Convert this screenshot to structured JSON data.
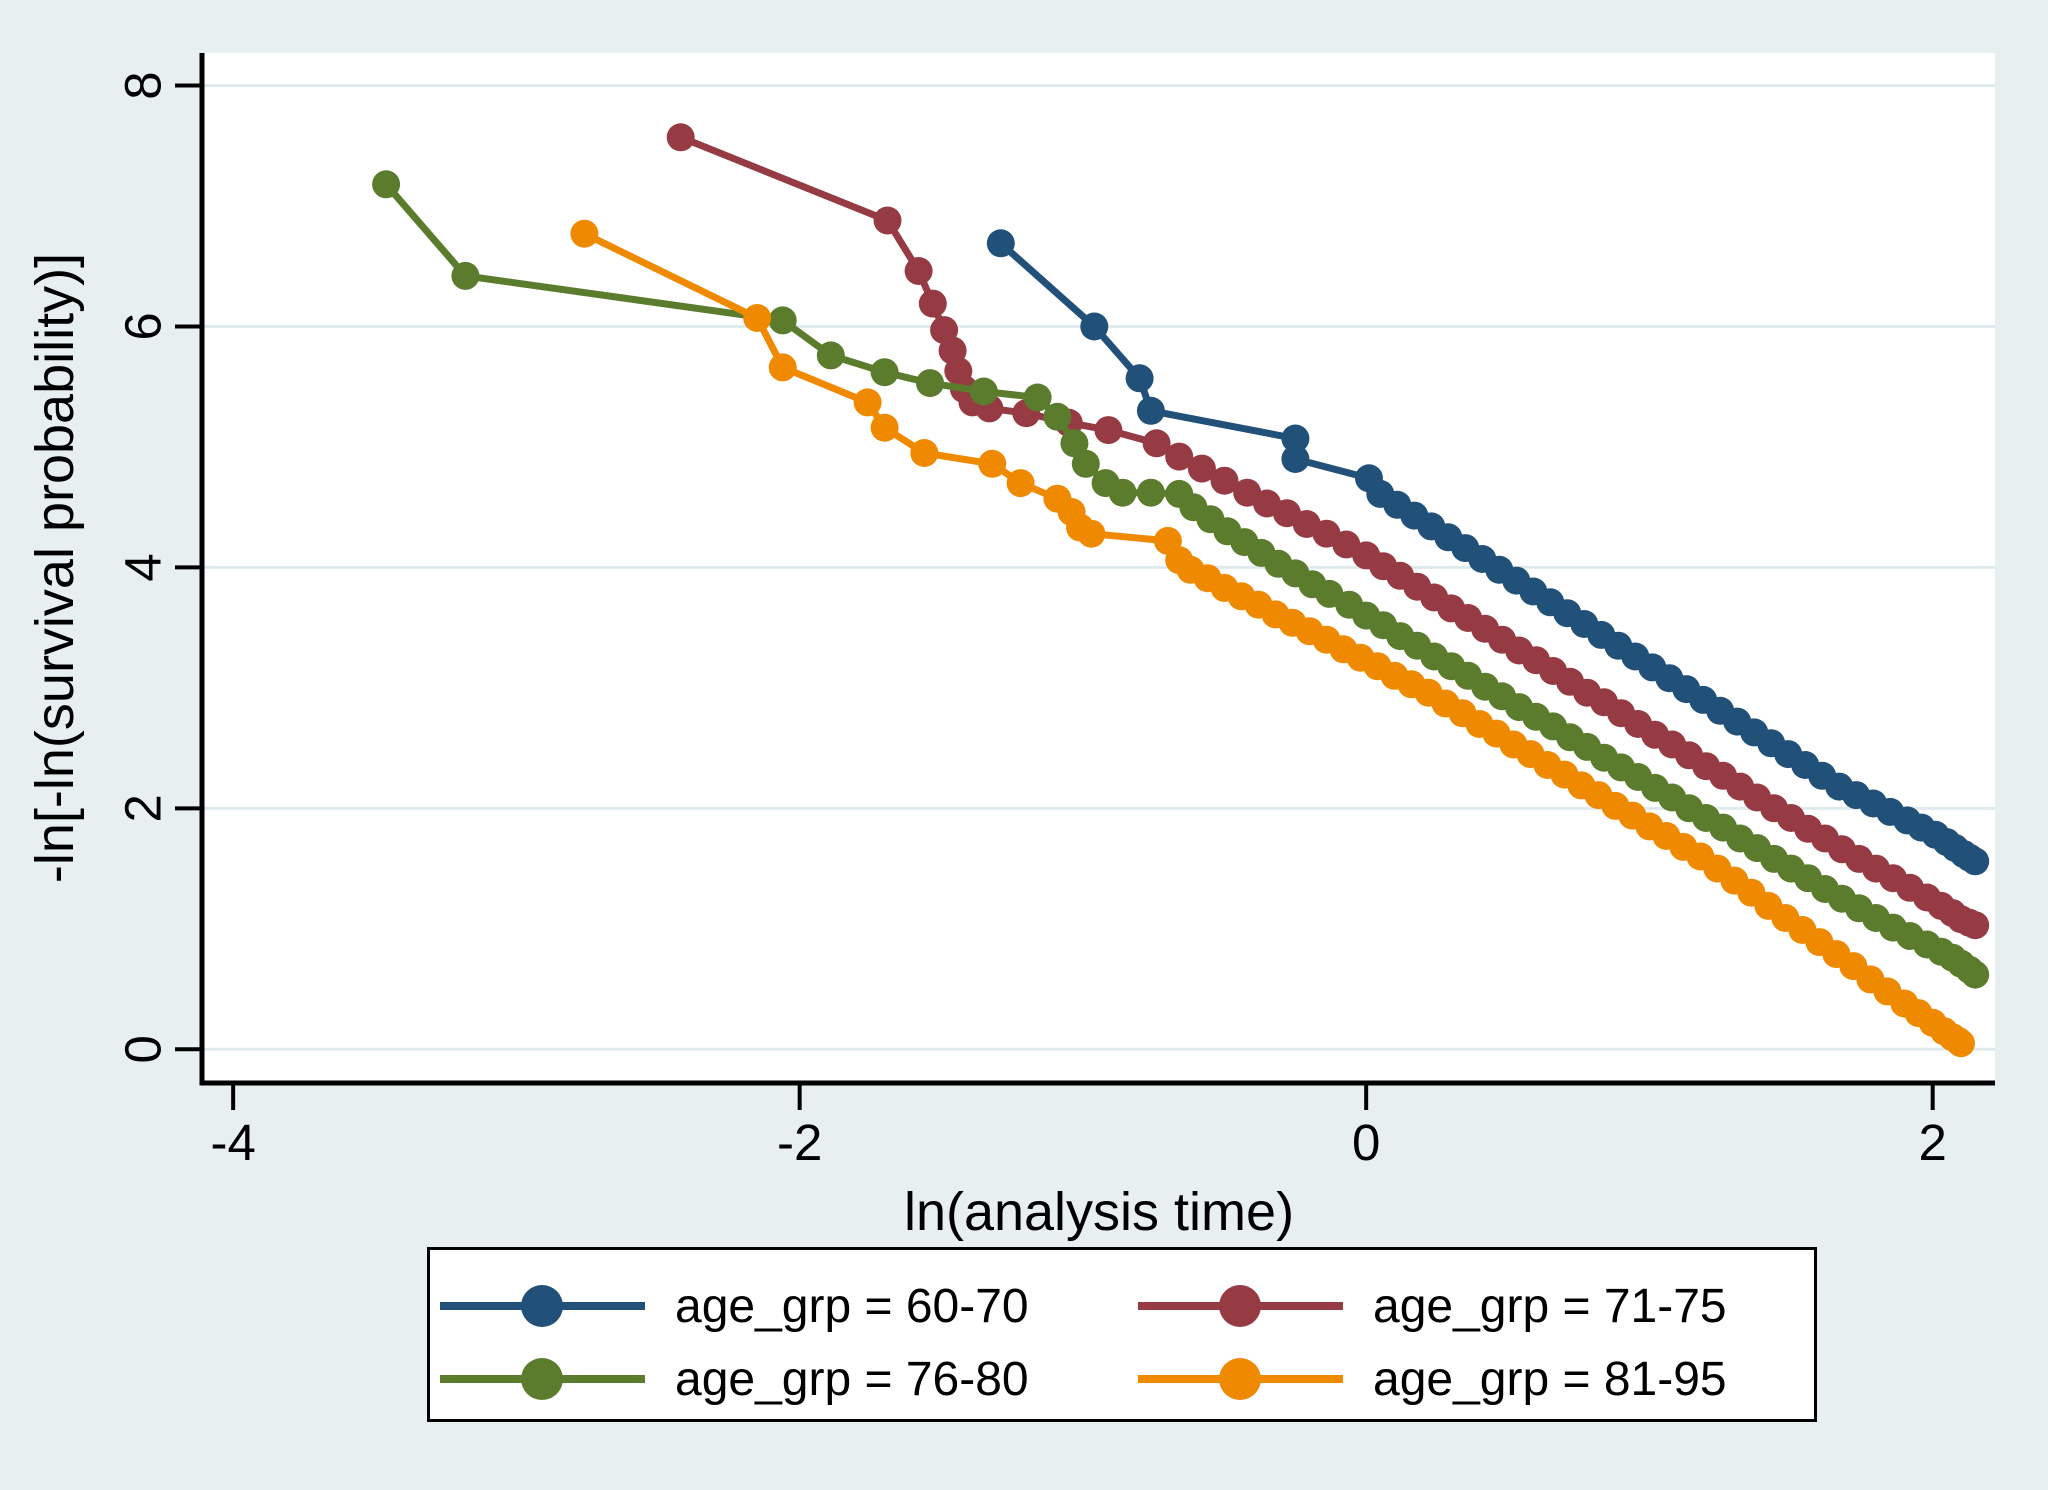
{
  "figure": {
    "background_color": "#e8eff1",
    "plot_background": "#ffffff",
    "grid_color": "#dfeaec",
    "axis_color": "#000000"
  },
  "chart_data": {
    "type": "line",
    "title": "",
    "xlabel": "ln(analysis time)",
    "ylabel": "-ln[-ln(survival probability)]",
    "xlim": [
      -4.11,
      2.22
    ],
    "ylim": [
      -0.28,
      8.27
    ],
    "xticks": [
      -4,
      -2,
      0,
      2
    ],
    "yticks": [
      0,
      2,
      4,
      6,
      8
    ],
    "grid": "horizontal",
    "legend_position": "bottom",
    "marker": "circle",
    "series": [
      {
        "name": "age_grp = 60-70",
        "color": "#215078",
        "points": [
          [
            -1.29,
            6.69
          ],
          [
            -0.96,
            6.0
          ],
          [
            -0.8,
            5.57
          ],
          [
            -0.76,
            5.3
          ],
          [
            -0.25,
            5.07
          ],
          [
            -0.25,
            4.9
          ],
          [
            0.01,
            4.74
          ],
          [
            0.05,
            4.61
          ],
          [
            0.11,
            4.52
          ],
          [
            0.17,
            4.43
          ],
          [
            0.23,
            4.34
          ],
          [
            0.29,
            4.25
          ],
          [
            0.35,
            4.16
          ],
          [
            0.41,
            4.07
          ],
          [
            0.47,
            3.98
          ],
          [
            0.53,
            3.89
          ],
          [
            0.59,
            3.8
          ],
          [
            0.65,
            3.71
          ],
          [
            0.71,
            3.62
          ],
          [
            0.77,
            3.53
          ],
          [
            0.83,
            3.44
          ],
          [
            0.89,
            3.35
          ],
          [
            0.95,
            3.26
          ],
          [
            1.01,
            3.17
          ],
          [
            1.07,
            3.08
          ],
          [
            1.13,
            2.99
          ],
          [
            1.19,
            2.9
          ],
          [
            1.25,
            2.81
          ],
          [
            1.31,
            2.72
          ],
          [
            1.37,
            2.63
          ],
          [
            1.43,
            2.54
          ],
          [
            1.49,
            2.45
          ],
          [
            1.55,
            2.36
          ],
          [
            1.61,
            2.27
          ],
          [
            1.67,
            2.18
          ],
          [
            1.73,
            2.11
          ],
          [
            1.79,
            2.04
          ],
          [
            1.85,
            1.97
          ],
          [
            1.91,
            1.9
          ],
          [
            1.96,
            1.84
          ],
          [
            2.01,
            1.78
          ],
          [
            2.05,
            1.72
          ],
          [
            2.08,
            1.67
          ],
          [
            2.11,
            1.62
          ],
          [
            2.13,
            1.59
          ],
          [
            2.15,
            1.56
          ]
        ]
      },
      {
        "name": "age_grp = 71-75",
        "color": "#963b44",
        "points": [
          [
            -2.42,
            7.57
          ],
          [
            -1.69,
            6.88
          ],
          [
            -1.58,
            6.46
          ],
          [
            -1.53,
            6.19
          ],
          [
            -1.49,
            5.97
          ],
          [
            -1.46,
            5.8
          ],
          [
            -1.44,
            5.63
          ],
          [
            -1.42,
            5.48
          ],
          [
            -1.39,
            5.37
          ],
          [
            -1.33,
            5.32
          ],
          [
            -1.2,
            5.28
          ],
          [
            -1.05,
            5.2
          ],
          [
            -0.91,
            5.14
          ],
          [
            -0.74,
            5.03
          ],
          [
            -0.66,
            4.92
          ],
          [
            -0.58,
            4.82
          ],
          [
            -0.5,
            4.72
          ],
          [
            -0.42,
            4.62
          ],
          [
            -0.35,
            4.53
          ],
          [
            -0.28,
            4.45
          ],
          [
            -0.21,
            4.36
          ],
          [
            -0.14,
            4.28
          ],
          [
            -0.07,
            4.19
          ],
          [
            0.0,
            4.1
          ],
          [
            0.06,
            4.01
          ],
          [
            0.12,
            3.93
          ],
          [
            0.18,
            3.84
          ],
          [
            0.24,
            3.75
          ],
          [
            0.3,
            3.66
          ],
          [
            0.36,
            3.58
          ],
          [
            0.42,
            3.49
          ],
          [
            0.48,
            3.4
          ],
          [
            0.54,
            3.31
          ],
          [
            0.6,
            3.23
          ],
          [
            0.66,
            3.14
          ],
          [
            0.72,
            3.05
          ],
          [
            0.78,
            2.96
          ],
          [
            0.84,
            2.88
          ],
          [
            0.9,
            2.79
          ],
          [
            0.96,
            2.7
          ],
          [
            1.02,
            2.61
          ],
          [
            1.08,
            2.53
          ],
          [
            1.14,
            2.44
          ],
          [
            1.2,
            2.35
          ],
          [
            1.26,
            2.27
          ],
          [
            1.32,
            2.18
          ],
          [
            1.38,
            2.09
          ],
          [
            1.44,
            2.0
          ],
          [
            1.5,
            1.92
          ],
          [
            1.56,
            1.83
          ],
          [
            1.62,
            1.75
          ],
          [
            1.68,
            1.66
          ],
          [
            1.74,
            1.58
          ],
          [
            1.8,
            1.5
          ],
          [
            1.86,
            1.42
          ],
          [
            1.92,
            1.34
          ],
          [
            1.98,
            1.26
          ],
          [
            2.03,
            1.19
          ],
          [
            2.07,
            1.13
          ],
          [
            2.1,
            1.08
          ],
          [
            2.13,
            1.05
          ],
          [
            2.15,
            1.03
          ]
        ]
      },
      {
        "name": "age_grp = 76-80",
        "color": "#5b7c2d",
        "points": [
          [
            -3.46,
            7.18
          ],
          [
            -3.18,
            6.42
          ],
          [
            -2.06,
            6.05
          ],
          [
            -1.89,
            5.76
          ],
          [
            -1.7,
            5.62
          ],
          [
            -1.54,
            5.53
          ],
          [
            -1.35,
            5.46
          ],
          [
            -1.16,
            5.41
          ],
          [
            -1.09,
            5.25
          ],
          [
            -1.03,
            5.03
          ],
          [
            -0.99,
            4.86
          ],
          [
            -0.92,
            4.7
          ],
          [
            -0.86,
            4.62
          ],
          [
            -0.76,
            4.62
          ],
          [
            -0.66,
            4.61
          ],
          [
            -0.61,
            4.5
          ],
          [
            -0.55,
            4.4
          ],
          [
            -0.49,
            4.3
          ],
          [
            -0.43,
            4.21
          ],
          [
            -0.37,
            4.12
          ],
          [
            -0.31,
            4.03
          ],
          [
            -0.25,
            3.95
          ],
          [
            -0.19,
            3.86
          ],
          [
            -0.13,
            3.78
          ],
          [
            -0.06,
            3.69
          ],
          [
            0.0,
            3.6
          ],
          [
            0.06,
            3.52
          ],
          [
            0.12,
            3.43
          ],
          [
            0.18,
            3.35
          ],
          [
            0.24,
            3.26
          ],
          [
            0.3,
            3.18
          ],
          [
            0.36,
            3.1
          ],
          [
            0.42,
            3.01
          ],
          [
            0.48,
            2.93
          ],
          [
            0.54,
            2.84
          ],
          [
            0.6,
            2.76
          ],
          [
            0.66,
            2.68
          ],
          [
            0.72,
            2.59
          ],
          [
            0.78,
            2.51
          ],
          [
            0.84,
            2.42
          ],
          [
            0.9,
            2.34
          ],
          [
            0.96,
            2.26
          ],
          [
            1.02,
            2.17
          ],
          [
            1.08,
            2.09
          ],
          [
            1.14,
            2.0
          ],
          [
            1.2,
            1.92
          ],
          [
            1.26,
            1.84
          ],
          [
            1.32,
            1.75
          ],
          [
            1.38,
            1.67
          ],
          [
            1.44,
            1.58
          ],
          [
            1.5,
            1.5
          ],
          [
            1.56,
            1.42
          ],
          [
            1.62,
            1.33
          ],
          [
            1.68,
            1.25
          ],
          [
            1.74,
            1.17
          ],
          [
            1.8,
            1.09
          ],
          [
            1.86,
            1.01
          ],
          [
            1.92,
            0.94
          ],
          [
            1.98,
            0.87
          ],
          [
            2.03,
            0.81
          ],
          [
            2.07,
            0.76
          ],
          [
            2.1,
            0.71
          ],
          [
            2.13,
            0.66
          ],
          [
            2.15,
            0.62
          ]
        ]
      },
      {
        "name": "age_grp = 81-95",
        "color": "#ef8a00",
        "points": [
          [
            -2.76,
            6.77
          ],
          [
            -2.15,
            6.07
          ],
          [
            -2.06,
            5.66
          ],
          [
            -1.76,
            5.37
          ],
          [
            -1.7,
            5.16
          ],
          [
            -1.56,
            4.95
          ],
          [
            -1.32,
            4.86
          ],
          [
            -1.22,
            4.7
          ],
          [
            -1.09,
            4.57
          ],
          [
            -1.04,
            4.46
          ],
          [
            -1.01,
            4.33
          ],
          [
            -0.97,
            4.28
          ],
          [
            -0.7,
            4.22
          ],
          [
            -0.66,
            4.06
          ],
          [
            -0.62,
            3.98
          ],
          [
            -0.56,
            3.91
          ],
          [
            -0.5,
            3.83
          ],
          [
            -0.44,
            3.76
          ],
          [
            -0.38,
            3.69
          ],
          [
            -0.32,
            3.61
          ],
          [
            -0.26,
            3.54
          ],
          [
            -0.2,
            3.47
          ],
          [
            -0.14,
            3.4
          ],
          [
            -0.08,
            3.32
          ],
          [
            -0.02,
            3.25
          ],
          [
            0.04,
            3.18
          ],
          [
            0.1,
            3.1
          ],
          [
            0.16,
            3.03
          ],
          [
            0.22,
            2.96
          ],
          [
            0.28,
            2.87
          ],
          [
            0.34,
            2.79
          ],
          [
            0.4,
            2.7
          ],
          [
            0.46,
            2.62
          ],
          [
            0.52,
            2.53
          ],
          [
            0.58,
            2.45
          ],
          [
            0.64,
            2.36
          ],
          [
            0.7,
            2.28
          ],
          [
            0.76,
            2.19
          ],
          [
            0.82,
            2.11
          ],
          [
            0.88,
            2.02
          ],
          [
            0.94,
            1.94
          ],
          [
            1.0,
            1.85
          ],
          [
            1.06,
            1.77
          ],
          [
            1.12,
            1.68
          ],
          [
            1.18,
            1.6
          ],
          [
            1.24,
            1.5
          ],
          [
            1.3,
            1.4
          ],
          [
            1.36,
            1.3
          ],
          [
            1.42,
            1.19
          ],
          [
            1.48,
            1.09
          ],
          [
            1.54,
            0.99
          ],
          [
            1.6,
            0.89
          ],
          [
            1.66,
            0.79
          ],
          [
            1.72,
            0.69
          ],
          [
            1.78,
            0.58
          ],
          [
            1.84,
            0.48
          ],
          [
            1.9,
            0.38
          ],
          [
            1.95,
            0.3
          ],
          [
            2.0,
            0.22
          ],
          [
            2.04,
            0.15
          ],
          [
            2.07,
            0.1
          ],
          [
            2.09,
            0.07
          ],
          [
            2.1,
            0.05
          ]
        ]
      }
    ]
  },
  "legend": {
    "entries": [
      "age_grp = 60-70",
      "age_grp = 71-75",
      "age_grp = 76-80",
      "age_grp = 81-95"
    ]
  }
}
